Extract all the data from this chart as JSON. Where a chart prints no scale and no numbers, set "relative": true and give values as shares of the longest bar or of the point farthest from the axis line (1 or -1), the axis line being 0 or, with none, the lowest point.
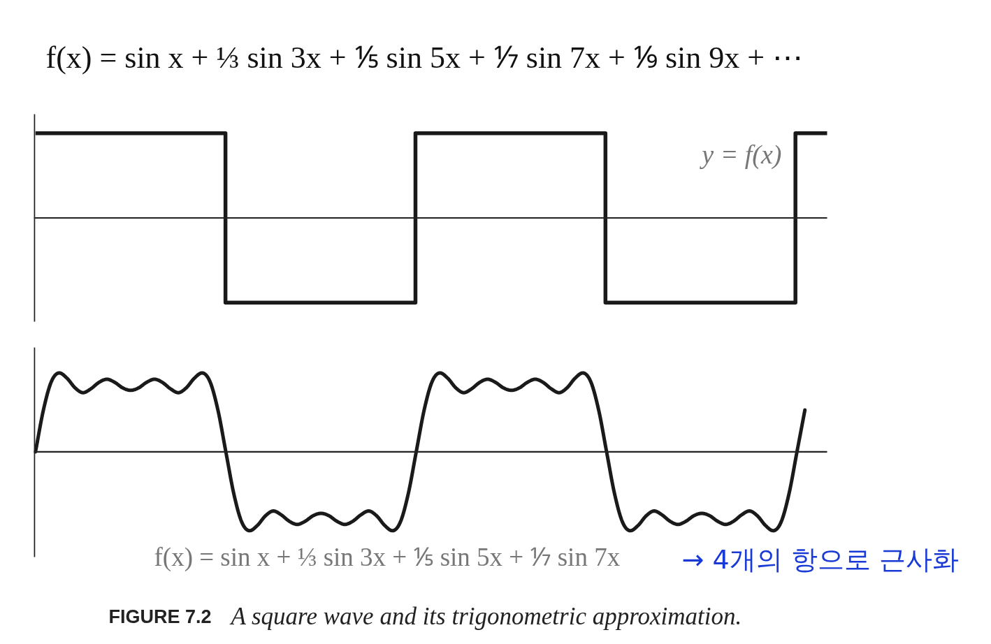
{
  "chart_data": [
    {
      "type": "step",
      "title": "f(x) = sin x + ⅓ sin 3x + ⅕ sin 5x + ⅐ sin 7x + ⅑ sin 9x + ⋯",
      "categories": [
        null,
        null,
        null,
        null,
        null,
        null,
        null,
        null,
        null,
        null,
        null,
        null,
        null,
        null,
        null,
        null,
        null,
        null,
        null,
        null,
        null,
        null,
        null,
        null,
        null,
        null
      ],
      "series": [
        {
          "name": "y = f(x)",
          "color": "#1a1a1a",
          "values": [
            1,
            1,
            1,
            1,
            1,
            1,
            -1,
            -1,
            -1,
            -1,
            -1,
            -1,
            1,
            1,
            1,
            1,
            1,
            1,
            -1,
            -1,
            -1,
            -1,
            -1,
            -1,
            1,
            1
          ]
        }
      ],
      "relative": true,
      "tick_labels": false
    },
    {
      "type": "line",
      "categories": [
        null,
        null,
        null,
        null,
        null,
        null,
        null,
        null,
        null,
        null,
        null,
        null,
        null,
        null,
        null,
        null,
        null,
        null,
        null,
        null,
        null,
        null,
        null,
        null,
        null,
        null,
        null,
        null,
        null,
        null,
        null,
        null,
        null,
        null,
        null,
        null,
        null,
        null,
        null,
        null,
        null,
        null,
        null,
        null,
        null,
        null,
        null,
        null,
        null,
        null,
        null,
        null,
        null,
        null,
        null,
        null,
        null,
        null,
        null,
        null,
        null,
        null,
        null,
        null,
        null,
        null,
        null,
        null,
        null,
        null,
        null,
        null,
        null,
        null,
        null,
        null,
        null,
        null,
        null,
        null,
        null,
        null,
        null,
        null,
        null,
        null,
        null,
        null,
        null,
        null,
        null,
        null,
        null,
        null,
        null,
        null,
        null,
        null
      ],
      "series": [
        {
          "name": "f(x) = sin x + ⅓ sin 3x + ⅕ sin 5x + ⅐ sin 7x",
          "color": "#1a1a1a",
          "values": [
            0,
            0.53,
            0.89,
            1.0,
            0.93,
            0.81,
            0.75,
            0.8,
            0.88,
            0.92,
            0.88,
            0.81,
            0.78,
            0.81,
            0.88,
            0.92,
            0.88,
            0.8,
            0.75,
            0.81,
            0.93,
            1.0,
            0.89,
            0.53,
            0,
            -0.53,
            -0.89,
            -1.0,
            -0.93,
            -0.81,
            -0.75,
            -0.8,
            -0.88,
            -0.92,
            -0.88,
            -0.81,
            -0.78,
            -0.81,
            -0.88,
            -0.92,
            -0.88,
            -0.8,
            -0.75,
            -0.81,
            -0.93,
            -1.0,
            -0.89,
            -0.53,
            0,
            0.53,
            0.89,
            1.0,
            0.93,
            0.81,
            0.75,
            0.8,
            0.88,
            0.92,
            0.88,
            0.81,
            0.78,
            0.81,
            0.88,
            0.92,
            0.88,
            0.8,
            0.75,
            0.81,
            0.93,
            1.0,
            0.89,
            0.53,
            0,
            -0.53,
            -0.89,
            -1.0,
            -0.93,
            -0.81,
            -0.75,
            -0.8,
            -0.88,
            -0.92,
            -0.88,
            -0.81,
            -0.78,
            -0.81,
            -0.88,
            -0.92,
            -0.88,
            -0.8,
            -0.75,
            -0.81,
            -0.93,
            -1.0,
            -0.89,
            -0.53,
            0,
            0.53
          ]
        }
      ],
      "relative": true,
      "tick_labels": false,
      "annotations": [
        "→ 4개의 항으로 근사화",
        "FIGURE 7.2",
        "A square wave and its trigonometric approximation."
      ]
    }
  ]
}
